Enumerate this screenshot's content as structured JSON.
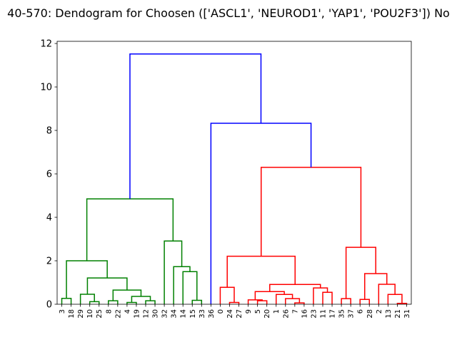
{
  "chart_data": {
    "type": "dendrogram",
    "title": "40-570: Dendogram for Choosen (['ASCL1', 'NEUROD1', 'YAP1', 'POU2F3']) No",
    "xlabel": "",
    "ylabel": "",
    "ylim": [
      0,
      12.1
    ],
    "yticks": [
      0,
      2,
      4,
      6,
      8,
      10,
      12
    ],
    "grid": false,
    "leaves": [
      "3",
      "18",
      "29",
      "10",
      "25",
      "8",
      "22",
      "4",
      "19",
      "12",
      "30",
      "32",
      "34",
      "14",
      "15",
      "33",
      "36",
      "0",
      "24",
      "27",
      "9",
      "5",
      "20",
      "1",
      "26",
      "7",
      "16",
      "23",
      "11",
      "17",
      "35",
      "37",
      "6",
      "28",
      "2",
      "13",
      "21",
      "31"
    ],
    "colors": {
      "green": "#008000",
      "red": "#ff0000",
      "blue": "#0000ff"
    },
    "links": [
      {
        "l": 0,
        "r": 1,
        "h": 0.27,
        "lh": 0,
        "rh": 0,
        "color": "green"
      },
      {
        "l": 3,
        "r": 4,
        "h": 0.12,
        "lh": 0,
        "rh": 0,
        "color": "green"
      },
      {
        "l": 2,
        "r": 3.5,
        "h": 0.46,
        "lh": 0,
        "rh": 0.12,
        "color": "green"
      },
      {
        "l": 5,
        "r": 6,
        "h": 0.16,
        "lh": 0,
        "rh": 0,
        "color": "green"
      },
      {
        "l": 7,
        "r": 8,
        "h": 0.08,
        "lh": 0,
        "rh": 0,
        "color": "green"
      },
      {
        "l": 9,
        "r": 10,
        "h": 0.16,
        "lh": 0,
        "rh": 0,
        "color": "green"
      },
      {
        "l": 7.5,
        "r": 9.5,
        "h": 0.36,
        "lh": 0.08,
        "rh": 0.16,
        "color": "green"
      },
      {
        "l": 5.5,
        "r": 8.5,
        "h": 0.65,
        "lh": 0.16,
        "rh": 0.36,
        "color": "green"
      },
      {
        "l": 2.75,
        "r": 7,
        "h": 1.21,
        "lh": 0.46,
        "rh": 0.65,
        "color": "green"
      },
      {
        "l": 0.5,
        "r": 4.875,
        "h": 2.0,
        "lh": 0.27,
        "rh": 1.21,
        "color": "green"
      },
      {
        "l": 14,
        "r": 15,
        "h": 0.18,
        "lh": 0,
        "rh": 0,
        "color": "green"
      },
      {
        "l": 13,
        "r": 14.5,
        "h": 1.5,
        "lh": 0,
        "rh": 0.18,
        "color": "green"
      },
      {
        "l": 12,
        "r": 13.75,
        "h": 1.73,
        "lh": 0,
        "rh": 1.5,
        "color": "green"
      },
      {
        "l": 11,
        "r": 12.875,
        "h": 2.91,
        "lh": 0,
        "rh": 1.73,
        "color": "green"
      },
      {
        "l": 2.6875,
        "r": 11.9375,
        "h": 4.85,
        "lh": 2.0,
        "rh": 2.91,
        "color": "green"
      },
      {
        "l": 18,
        "r": 19,
        "h": 0.08,
        "lh": 0,
        "rh": 0,
        "color": "red"
      },
      {
        "l": 17,
        "r": 18.5,
        "h": 0.78,
        "lh": 0,
        "rh": 0.08,
        "color": "red"
      },
      {
        "l": 21,
        "r": 22,
        "h": 0.16,
        "lh": 0,
        "rh": 0,
        "color": "red"
      },
      {
        "l": 20,
        "r": 21.5,
        "h": 0.2,
        "lh": 0,
        "rh": 0.16,
        "color": "red"
      },
      {
        "l": 25,
        "r": 26,
        "h": 0.06,
        "lh": 0,
        "rh": 0,
        "color": "red"
      },
      {
        "l": 24,
        "r": 25.5,
        "h": 0.26,
        "lh": 0,
        "rh": 0.06,
        "color": "red"
      },
      {
        "l": 23,
        "r": 24.75,
        "h": 0.45,
        "lh": 0,
        "rh": 0.26,
        "color": "red"
      },
      {
        "l": 20.75,
        "r": 23.875,
        "h": 0.58,
        "lh": 0.2,
        "rh": 0.45,
        "color": "red"
      },
      {
        "l": 28,
        "r": 29,
        "h": 0.55,
        "lh": 0,
        "rh": 0,
        "color": "red"
      },
      {
        "l": 27,
        "r": 28.5,
        "h": 0.75,
        "lh": 0,
        "rh": 0.55,
        "color": "red"
      },
      {
        "l": 22.3125,
        "r": 27.75,
        "h": 0.91,
        "lh": 0.58,
        "rh": 0.75,
        "color": "red"
      },
      {
        "l": 17.75,
        "r": 25.03125,
        "h": 2.21,
        "lh": 0.78,
        "rh": 0.91,
        "color": "red"
      },
      {
        "l": 30,
        "r": 31,
        "h": 0.26,
        "lh": 0,
        "rh": 0,
        "color": "red"
      },
      {
        "l": 32,
        "r": 33,
        "h": 0.22,
        "lh": 0,
        "rh": 0,
        "color": "red"
      },
      {
        "l": 36,
        "r": 37,
        "h": 0.04,
        "lh": 0,
        "rh": 0,
        "color": "red"
      },
      {
        "l": 35,
        "r": 36.5,
        "h": 0.45,
        "lh": 0,
        "rh": 0.04,
        "color": "red"
      },
      {
        "l": 34,
        "r": 35.75,
        "h": 0.92,
        "lh": 0,
        "rh": 0.45,
        "color": "red"
      },
      {
        "l": 32.5,
        "r": 34.875,
        "h": 1.41,
        "lh": 0.22,
        "rh": 0.92,
        "color": "red"
      },
      {
        "l": 30.5,
        "r": 33.6875,
        "h": 2.62,
        "lh": 0.26,
        "rh": 1.41,
        "color": "red"
      },
      {
        "l": 21.390625,
        "r": 32.09375,
        "h": 6.3,
        "lh": 2.21,
        "rh": 2.62,
        "color": "red"
      },
      {
        "l": 16,
        "r": 26.7421875,
        "h": 8.33,
        "lh": 0,
        "rh": 6.3,
        "color": "blue"
      },
      {
        "l": 7.3125,
        "r": 21.37109375,
        "h": 11.52,
        "lh": 4.85,
        "rh": 8.33,
        "color": "blue"
      }
    ]
  }
}
